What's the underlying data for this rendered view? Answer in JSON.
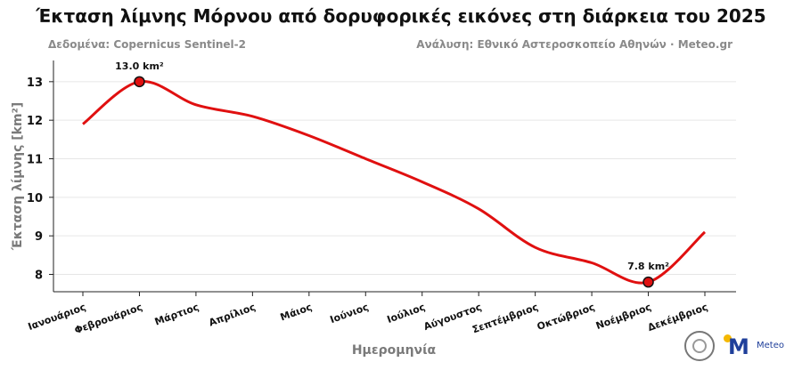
{
  "title": "Έκταση λίμνης Μόρνου από δορυφορικές εικόνες στη διάρκεια του 2025",
  "source_left": "Δεδομένα: Copernicus Sentinel-2",
  "source_right": "Ανάλυση: Εθνικό Αστεροσκοπείο Αθηνών · Meteo.gr",
  "logo_text": "Meteo",
  "colors": {
    "line": "#e01010",
    "marker_fill": "#e01010",
    "marker_edge": "#111111",
    "grid": "#e6e6e6",
    "label": "#7a7a7a"
  },
  "chart_data": {
    "type": "line",
    "title": "Έκταση λίμνης Μόρνου από δορυφορικές εικόνες στη διάρκεια του 2025",
    "xlabel": "Ημερομηνία",
    "ylabel": "Έκταση λίμνης [km²]",
    "categories": [
      "Ιανουάριος",
      "Φεβρουάριος",
      "Μάρτιος",
      "Απρίλιος",
      "Μάιος",
      "Ιούνιος",
      "Ιούλιος",
      "Αύγουστος",
      "Σεπτέμβριος",
      "Οκτώβριος",
      "Νοέμβριος",
      "Δεκέμβριος"
    ],
    "values": [
      11.9,
      13.0,
      12.4,
      12.1,
      11.6,
      11.0,
      10.4,
      9.7,
      8.7,
      8.3,
      7.8,
      9.1
    ],
    "ylim": [
      7.55,
      13.55
    ],
    "yticks": [
      8,
      9,
      10,
      11,
      12,
      13
    ],
    "grid": "horizontal",
    "annotations": [
      {
        "label": "13.0 km²",
        "index": 1
      },
      {
        "label": "7.8 km²",
        "index": 10
      }
    ]
  }
}
